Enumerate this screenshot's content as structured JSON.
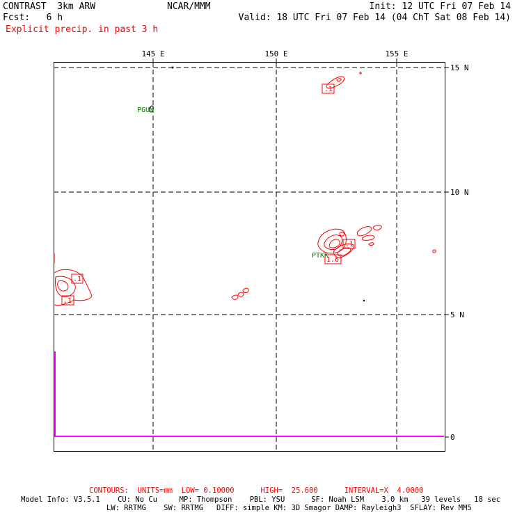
{
  "header": {
    "title_left": "CONTRAST  3km ARW",
    "center": "NCAR/MMM",
    "init": "Init: 12 UTC Fri 07 Feb 14",
    "fcst": "Fcst:   6 h",
    "valid": "Valid: 18 UTC Fri 07 Feb 14 (04 ChT Sat 08 Feb 14)",
    "field": "Explicit precip. in past 3 h"
  },
  "map": {
    "lon_labels": [
      "145 E",
      "150 E",
      "155 E"
    ],
    "lat_labels": [
      "15 N",
      "10 N",
      "5 N",
      "0"
    ],
    "stations": [
      {
        "id": "PGUM"
      },
      {
        "id": "PTKK"
      }
    ],
    "contour_labels": [
      ".1",
      ".1",
      ".1",
      ".1",
      "1.6"
    ],
    "colors": {
      "frame": "#000000",
      "contours": "#ff0000",
      "stations": "#007f00",
      "coast_line": "#ff00ff"
    }
  },
  "footer": {
    "contours_line": "CONTOURS:  UNITS=mm  LOW= 0.10000      HIGH=  25.600      INTERVAL=X  4.0000",
    "model_line1": "Model Info: V3.5.1    CU: No Cu     MP: Thompson    PBL: YSU      SF: Noah LSM    3.0 km   39 levels   18 sec",
    "model_line2": "LW: RRTMG    SW: RRTMG   DIFF: simple KM: 3D Smagor DAMP: Rayleigh3  SFLAY: Rev MM5"
  }
}
